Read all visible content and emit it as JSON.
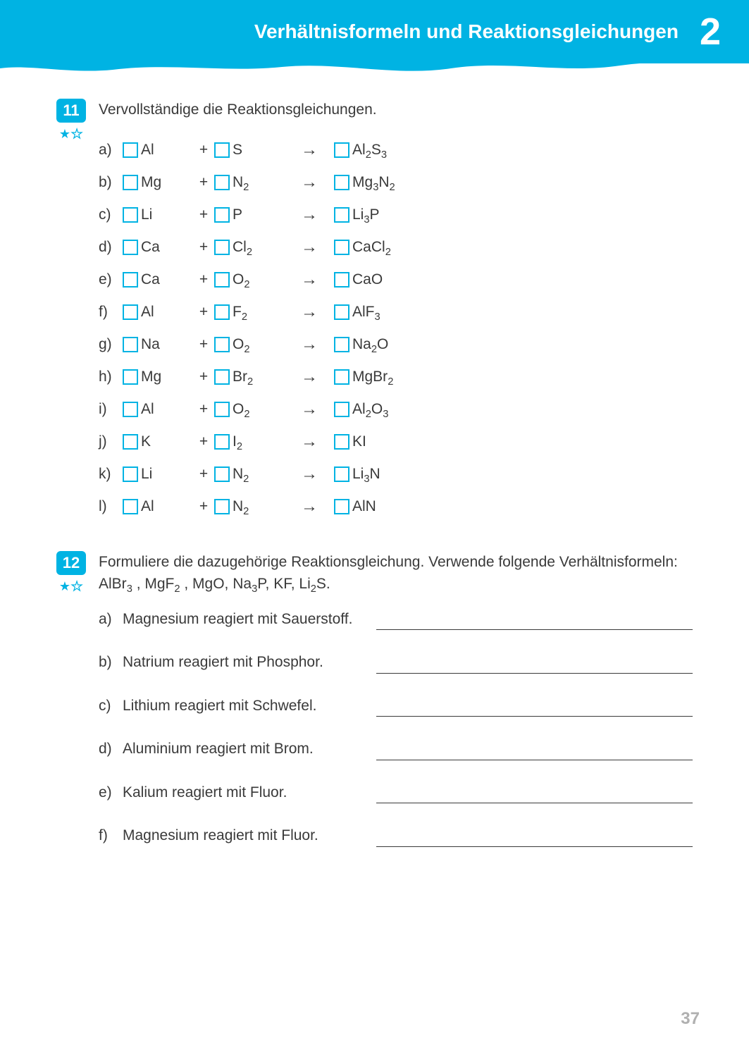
{
  "header": {
    "title": "Verhältnisformeln und Reaktionsgleichungen",
    "chapter": "2",
    "bg_color": "#00b3e3",
    "text_color": "#ffffff"
  },
  "page_number": "37",
  "colors": {
    "accent": "#00b3e3",
    "text": "#3a3a3a",
    "pagenum": "#b0b0b0",
    "box_border": "#00b3e3"
  },
  "ex11": {
    "number": "11",
    "difficulty_filled": 1,
    "difficulty_total": 2,
    "instruction": "Vervollständige die Reaktionsgleichungen.",
    "rows": [
      {
        "l": "a)",
        "r1": "Al",
        "r2": "S",
        "prod": "Al<sub>2</sub>S<sub>3</sub>"
      },
      {
        "l": "b)",
        "r1": "Mg",
        "r2": "N<sub>2</sub>",
        "prod": "Mg<sub>3</sub>N<sub>2</sub>"
      },
      {
        "l": "c)",
        "r1": "Li",
        "r2": "P",
        "prod": "Li<sub>3</sub>P"
      },
      {
        "l": "d)",
        "r1": "Ca",
        "r2": "Cl<sub>2</sub>",
        "prod": "CaCl<sub>2</sub>"
      },
      {
        "l": "e)",
        "r1": "Ca",
        "r2": "O<sub>2</sub>",
        "prod": "CaO"
      },
      {
        "l": "f)",
        "r1": "Al",
        "r2": "F<sub>2</sub>",
        "prod": "AlF<sub>3</sub>"
      },
      {
        "l": "g)",
        "r1": "Na",
        "r2": "O<sub>2</sub>",
        "prod": "Na<sub>2</sub>O"
      },
      {
        "l": "h)",
        "r1": "Mg",
        "r2": "Br<sub>2</sub>",
        "prod": "MgBr<sub>2</sub>"
      },
      {
        "l": "i)",
        "r1": "Al",
        "r2": "O<sub>2</sub>",
        "prod": "Al<sub>2</sub>O<sub>3</sub>"
      },
      {
        "l": "j)",
        "r1": "K",
        "r2": "I<sub>2</sub>",
        "prod": "KI"
      },
      {
        "l": "k)",
        "r1": "Li",
        "r2": "N<sub>2</sub>",
        "prod": "Li<sub>3</sub>N"
      },
      {
        "l": "l)",
        "r1": "Al",
        "r2": "N<sub>2</sub>",
        "prod": "AlN"
      }
    ],
    "plus": "+",
    "arrow": "→"
  },
  "ex12": {
    "number": "12",
    "difficulty_filled": 1,
    "difficulty_total": 2,
    "instruction": "Formuliere die dazugehörige Reaktionsgleichung. Verwende folgende Verhältnisformeln:  AlBr<sub>3</sub> , MgF<sub>2</sub> , MgO, Na<sub>3</sub>P, KF, Li<sub>2</sub>S.",
    "rows": [
      {
        "l": "a)",
        "t": "Magnesium reagiert mit Sauerstoff."
      },
      {
        "l": "b)",
        "t": "Natrium reagiert mit Phosphor."
      },
      {
        "l": "c)",
        "t": "Lithium reagiert mit Schwefel."
      },
      {
        "l": "d)",
        "t": "Aluminium reagiert mit Brom."
      },
      {
        "l": "e)",
        "t": "Kalium reagiert mit Fluor."
      },
      {
        "l": "f)",
        "t": "Magnesium reagiert mit Fluor."
      }
    ]
  }
}
